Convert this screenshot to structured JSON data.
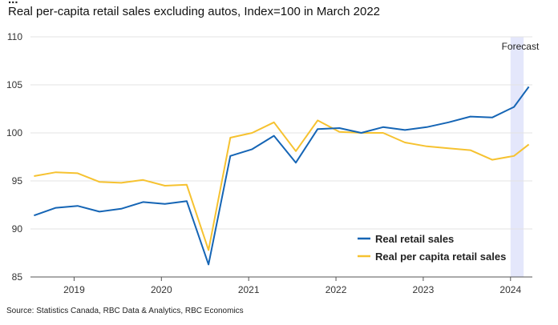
{
  "header": {
    "title_fragment": "...",
    "title": "Real per-capita retail sales excluding autos, Index=100 in March 2022"
  },
  "source": "Source: Statistics Canada, RBC Data & Analytics, RBC Economics",
  "chart_data": {
    "type": "line",
    "title": "Real per-capita retail sales excluding autos, Index=100 in March 2022",
    "xlabel": "",
    "ylabel": "",
    "ylim": [
      85,
      110
    ],
    "yticks": [
      85,
      90,
      95,
      100,
      105,
      110
    ],
    "xlim": [
      2018.5,
      2024.25
    ],
    "xticks": [
      {
        "label": "2019",
        "value": 2019.0
      },
      {
        "label": "2020",
        "value": 2020.0
      },
      {
        "label": "2021",
        "value": 2021.0
      },
      {
        "label": "2022",
        "value": 2022.0
      },
      {
        "label": "2023",
        "value": 2023.0
      },
      {
        "label": "2024",
        "value": 2024.0
      }
    ],
    "x": [
      2018.54,
      2018.79,
      2019.04,
      2019.29,
      2019.54,
      2019.79,
      2020.04,
      2020.29,
      2020.54,
      2020.79,
      2021.04,
      2021.29,
      2021.54,
      2021.79,
      2022.04,
      2022.29,
      2022.54,
      2022.79,
      2023.04,
      2023.29,
      2023.54,
      2023.79,
      2024.04,
      2024.21
    ],
    "series": [
      {
        "name": "Real retail sales",
        "color": "#1565b5",
        "values": [
          91.4,
          92.2,
          92.4,
          91.8,
          92.1,
          92.8,
          92.6,
          92.9,
          86.3,
          97.6,
          98.3,
          99.7,
          96.9,
          100.4,
          100.5,
          100.0,
          100.6,
          100.3,
          100.6,
          101.1,
          101.7,
          101.6,
          102.7,
          104.8
        ]
      },
      {
        "name": "Real per capita retail sales",
        "color": "#f6c230",
        "values": [
          95.5,
          95.9,
          95.8,
          94.9,
          94.8,
          95.1,
          94.5,
          94.6,
          87.8,
          99.5,
          100.0,
          101.1,
          98.1,
          101.3,
          100.1,
          100.0,
          100.0,
          99.0,
          98.6,
          98.4,
          98.2,
          97.2,
          97.6,
          98.8
        ]
      }
    ],
    "forecast": {
      "label": "Forecast",
      "x_start": 2024.0,
      "x_end": 2024.15,
      "color": "#e4e7fb"
    },
    "legend_position": "bottom-right"
  }
}
